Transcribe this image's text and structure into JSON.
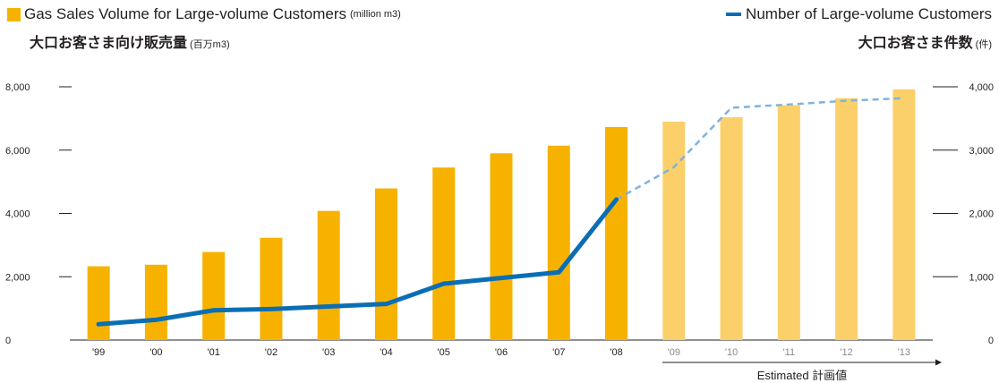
{
  "legend": {
    "bars_label": "Gas Sales Volume for Large-volume Customers",
    "bars_unit": "(million m3)",
    "bars_label_ja": "大口お客さま向け販売量",
    "bars_unit_ja": "(百万m3)",
    "line_label": "Number of Large-volume Customers",
    "line_label_ja": "大口お客さま件数",
    "line_unit_ja": "(件)"
  },
  "estimated_label": "Estimated 計画値",
  "colors": {
    "actual_bar": "#f7b200",
    "estimated_bar": "#fbd06a",
    "actual_line": "#0a6eb4",
    "estimated_line": "#7fb3dc"
  },
  "chart_data": {
    "type": "bar",
    "categories": [
      "'99",
      "'00",
      "'01",
      "'02",
      "'03",
      "'04",
      "'05",
      "'06",
      "'07",
      "'08",
      "'09",
      "'10",
      "'11",
      "'12",
      "'13"
    ],
    "estimated_from": "'09",
    "series": [
      {
        "name": "Gas Sales Volume for Large-volume Customers",
        "axis": "left",
        "type": "bar",
        "values": [
          2330,
          2380,
          2780,
          3230,
          4080,
          4790,
          5450,
          5900,
          6140,
          6730,
          6900,
          7040,
          7420,
          7640,
          7920
        ]
      },
      {
        "name": "Number of Large-volume Customers",
        "axis": "right",
        "type": "line",
        "values": [
          250,
          320,
          470,
          490,
          530,
          570,
          890,
          980,
          1070,
          2220,
          2730,
          3670,
          3720,
          3780,
          3820
        ]
      }
    ],
    "ylim_left": [
      0,
      8000
    ],
    "yticks_left": [
      "0",
      "2,000",
      "4,000",
      "6,000",
      "8,000"
    ],
    "ylim_right": [
      0,
      4000
    ],
    "yticks_right": [
      "0",
      "1,000",
      "2,000",
      "3,000",
      "4,000"
    ]
  }
}
